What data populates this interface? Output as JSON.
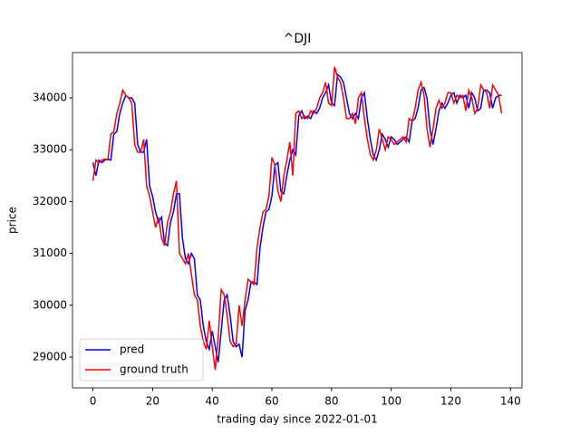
{
  "chart_data": {
    "type": "line",
    "title": "^DJI",
    "x_label": "trading day since 2022-01-01",
    "y_label": "price",
    "x": [
      0,
      1,
      2,
      3,
      4,
      5,
      6,
      7,
      8,
      9,
      10,
      11,
      12,
      13,
      14,
      15,
      16,
      17,
      18,
      19,
      20,
      21,
      22,
      23,
      24,
      25,
      26,
      27,
      28,
      29,
      30,
      31,
      32,
      33,
      34,
      35,
      36,
      37,
      38,
      39,
      40,
      41,
      42,
      43,
      44,
      45,
      46,
      47,
      48,
      49,
      50,
      51,
      52,
      53,
      54,
      55,
      56,
      57,
      58,
      59,
      60,
      61,
      62,
      63,
      64,
      65,
      66,
      67,
      68,
      69,
      70,
      71,
      72,
      73,
      74,
      75,
      76,
      77,
      78,
      79,
      80,
      81,
      82,
      83,
      84,
      85,
      86,
      87,
      88,
      89,
      90,
      91,
      92,
      93,
      94,
      95,
      96,
      97,
      98,
      99,
      100,
      101,
      102,
      103,
      104,
      105,
      106,
      107,
      108,
      109,
      110,
      111,
      112,
      113,
      114,
      115,
      116,
      117,
      118,
      119,
      120,
      121,
      122,
      123,
      124,
      125,
      126,
      127,
      128,
      129,
      130,
      131,
      132,
      133,
      134,
      135,
      136,
      137
    ],
    "series": [
      {
        "name": "pred",
        "color": "#0000ff",
        "values": [
          32750,
          32500,
          32800,
          32750,
          32800,
          32820,
          32800,
          33300,
          33350,
          33700,
          33900,
          34050,
          34000,
          34000,
          33900,
          33100,
          32950,
          32950,
          33200,
          32300,
          32100,
          31800,
          31600,
          31700,
          31200,
          31150,
          31600,
          31800,
          32150,
          32150,
          31300,
          30900,
          30800,
          31000,
          30900,
          30200,
          30100,
          29600,
          29300,
          29150,
          29500,
          29200,
          28900,
          29500,
          30100,
          30200,
          29800,
          29300,
          29200,
          29250,
          29000,
          29900,
          30100,
          30450,
          30450,
          30400,
          31100,
          31500,
          31800,
          31850,
          32100,
          32700,
          32750,
          32200,
          32150,
          32500,
          32800,
          33000,
          32900,
          33650,
          33750,
          33600,
          33650,
          33600,
          33750,
          33700,
          33800,
          34000,
          34100,
          34250,
          33900,
          33850,
          34450,
          34400,
          34300,
          34000,
          33700,
          33600,
          33700,
          33600,
          34000,
          34100,
          33600,
          33200,
          32900,
          32800,
          33000,
          33300,
          33200,
          33050,
          33250,
          33200,
          33100,
          33150,
          33200,
          33250,
          33150,
          33550,
          33600,
          33800,
          34150,
          34200,
          34000,
          33400,
          33100,
          33400,
          33750,
          33900,
          33800,
          33900,
          34050,
          34100,
          33900,
          34050,
          34000,
          34050,
          33800,
          34100,
          34000,
          33750,
          33800,
          34150,
          34150,
          34100,
          33800,
          34000,
          34050,
          34050
        ]
      },
      {
        "name": "ground truth",
        "color": "#ff0000",
        "values": [
          32400,
          32800,
          32750,
          32800,
          32820,
          32800,
          33300,
          33350,
          33700,
          33900,
          34150,
          34050,
          34000,
          33900,
          33100,
          32950,
          32950,
          33200,
          32300,
          32100,
          31800,
          31500,
          31700,
          31300,
          31150,
          31600,
          31800,
          32150,
          32400,
          31000,
          30900,
          30800,
          31000,
          30600,
          30200,
          30100,
          29600,
          29300,
          29150,
          29700,
          29200,
          28750,
          29400,
          30300,
          30200,
          29800,
          29300,
          29200,
          29250,
          30000,
          29600,
          30100,
          30500,
          30450,
          30400,
          31100,
          31500,
          31800,
          31850,
          32100,
          32850,
          32700,
          32200,
          32000,
          32500,
          32800,
          33150,
          32500,
          33700,
          33750,
          33600,
          33650,
          33600,
          33750,
          33700,
          33800,
          34000,
          34100,
          34300,
          33900,
          33850,
          34600,
          34400,
          34300,
          34000,
          33600,
          33600,
          33700,
          33500,
          34000,
          34100,
          33600,
          33200,
          32900,
          32800,
          33000,
          33400,
          33200,
          33000,
          33250,
          33200,
          33100,
          33150,
          33200,
          33250,
          33150,
          33600,
          33550,
          33800,
          34150,
          34300,
          34050,
          33400,
          33050,
          33400,
          33800,
          33950,
          33800,
          33900,
          34100,
          34100,
          33900,
          34050,
          34000,
          34050,
          33750,
          34150,
          34000,
          33700,
          33800,
          34250,
          34150,
          34100,
          33800,
          34250,
          34150,
          34050,
          33700
        ]
      }
    ],
    "xlim": [
      -6.85,
      143.85
    ],
    "xticks": [
      0,
      20,
      40,
      60,
      80,
      100,
      120,
      140
    ],
    "ylim": [
      28406,
      34874
    ],
    "yticks": [
      29000,
      30000,
      31000,
      32000,
      33000,
      34000
    ],
    "legend": "lower left"
  }
}
